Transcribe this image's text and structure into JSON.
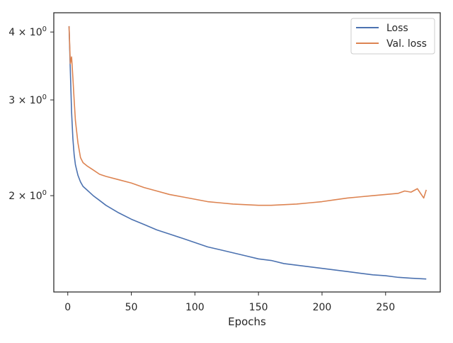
{
  "chart_data": {
    "type": "line",
    "xlabel": "Epochs",
    "ylabel": "",
    "xlim": [
      -11,
      293
    ],
    "ylim": [
      1.33,
      4.34
    ],
    "yscale": "log",
    "xticks": [
      0,
      50,
      100,
      150,
      200,
      250
    ],
    "xtick_labels": [
      "0",
      "50",
      "100",
      "150",
      "200",
      "250"
    ],
    "yticks": [
      2,
      3,
      4
    ],
    "ytick_labels": [
      {
        "base": "2 × 10",
        "exp": "0"
      },
      {
        "base": "3 × 10",
        "exp": "0"
      },
      {
        "base": "4 × 10",
        "exp": "0"
      }
    ],
    "legend_position": "top-right",
    "grid": false,
    "series": [
      {
        "name": "Loss",
        "color": "#4c72b0",
        "x": [
          1,
          2,
          3,
          4,
          5,
          6,
          8,
          10,
          12,
          15,
          20,
          25,
          30,
          40,
          50,
          60,
          70,
          80,
          90,
          100,
          110,
          120,
          130,
          140,
          150,
          160,
          170,
          180,
          190,
          200,
          210,
          220,
          230,
          240,
          250,
          260,
          270,
          282
        ],
        "y": [
          4.1,
          3.4,
          2.85,
          2.55,
          2.38,
          2.28,
          2.18,
          2.12,
          2.08,
          2.05,
          2.0,
          1.96,
          1.92,
          1.86,
          1.81,
          1.77,
          1.73,
          1.7,
          1.67,
          1.64,
          1.61,
          1.59,
          1.57,
          1.55,
          1.53,
          1.52,
          1.5,
          1.49,
          1.48,
          1.47,
          1.46,
          1.45,
          1.44,
          1.43,
          1.425,
          1.415,
          1.41,
          1.405
        ]
      },
      {
        "name": "Val. loss",
        "color": "#dd8452",
        "x": [
          1,
          2,
          3,
          4,
          5,
          6,
          8,
          10,
          12,
          15,
          20,
          25,
          30,
          40,
          50,
          60,
          70,
          80,
          90,
          100,
          110,
          120,
          130,
          140,
          150,
          160,
          170,
          180,
          190,
          200,
          210,
          220,
          230,
          240,
          250,
          260,
          265,
          270,
          275,
          280,
          282
        ],
        "y": [
          4.1,
          3.5,
          3.6,
          3.3,
          3.0,
          2.75,
          2.5,
          2.35,
          2.3,
          2.27,
          2.23,
          2.19,
          2.17,
          2.14,
          2.11,
          2.07,
          2.04,
          2.01,
          1.99,
          1.97,
          1.95,
          1.94,
          1.93,
          1.925,
          1.92,
          1.92,
          1.925,
          1.93,
          1.94,
          1.95,
          1.965,
          1.98,
          1.99,
          2.0,
          2.01,
          2.02,
          2.04,
          2.03,
          2.06,
          1.98,
          2.05
        ]
      }
    ]
  }
}
